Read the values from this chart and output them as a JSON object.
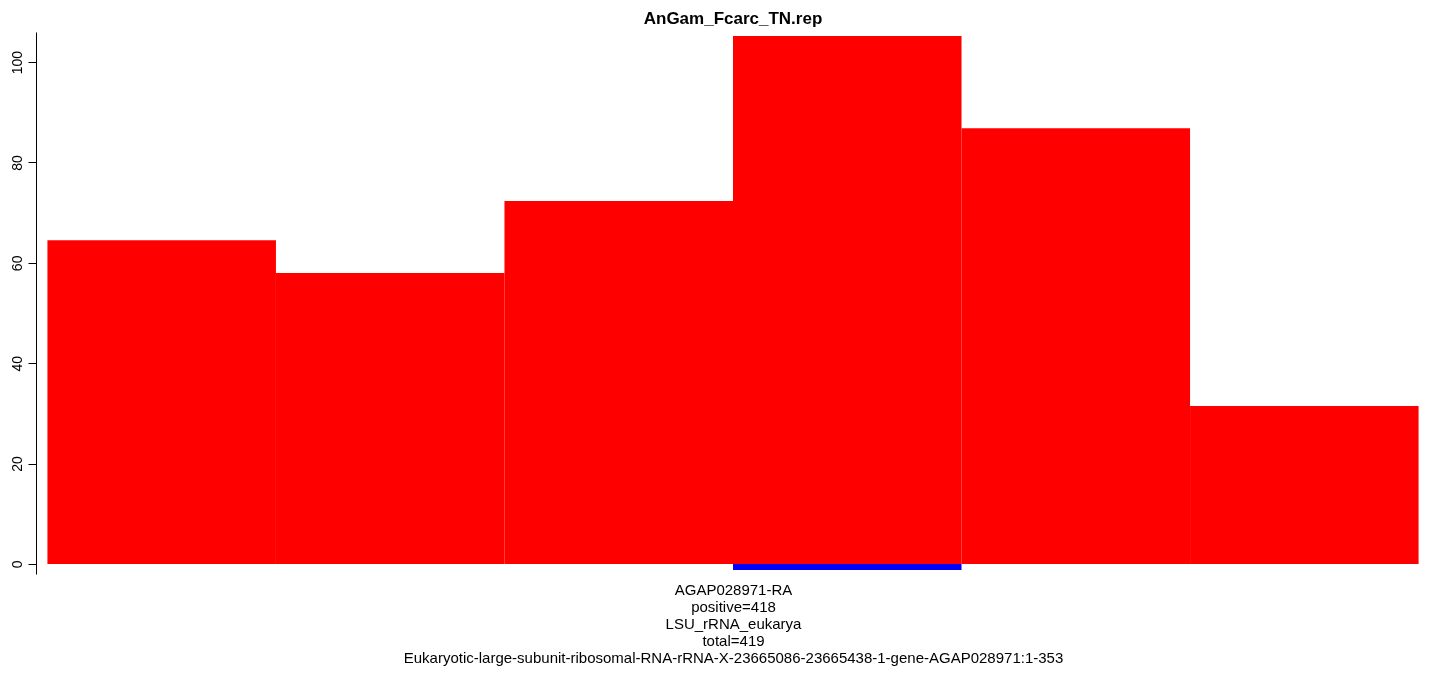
{
  "chart_data": {
    "type": "bar",
    "stacked": true,
    "title": "AnGam_Fcarc_TN.rep",
    "categories": [
      null,
      null,
      null,
      null,
      null,
      null
    ],
    "series": [
      {
        "color": "#ff0000",
        "values": [
          64.5,
          58,
          72.3,
          105.2,
          86.8,
          31.5
        ]
      },
      {
        "color": "#0000ff",
        "values": [
          null,
          null,
          null,
          -1.2,
          null,
          null
        ]
      }
    ],
    "ylim": [
      -2,
      106
    ],
    "yticks": [
      0,
      20,
      40,
      60,
      80,
      100
    ],
    "grid": false,
    "annotations": [
      "AGAP028971-RA",
      "positive=418",
      "LSU_rRNA_eukarya",
      "total=419",
      "Eukaryotic-large-subunit-ribosomal-RNA-rRNA-X-23665086-23665438-1-gene-AGAP028971:1-353"
    ]
  }
}
